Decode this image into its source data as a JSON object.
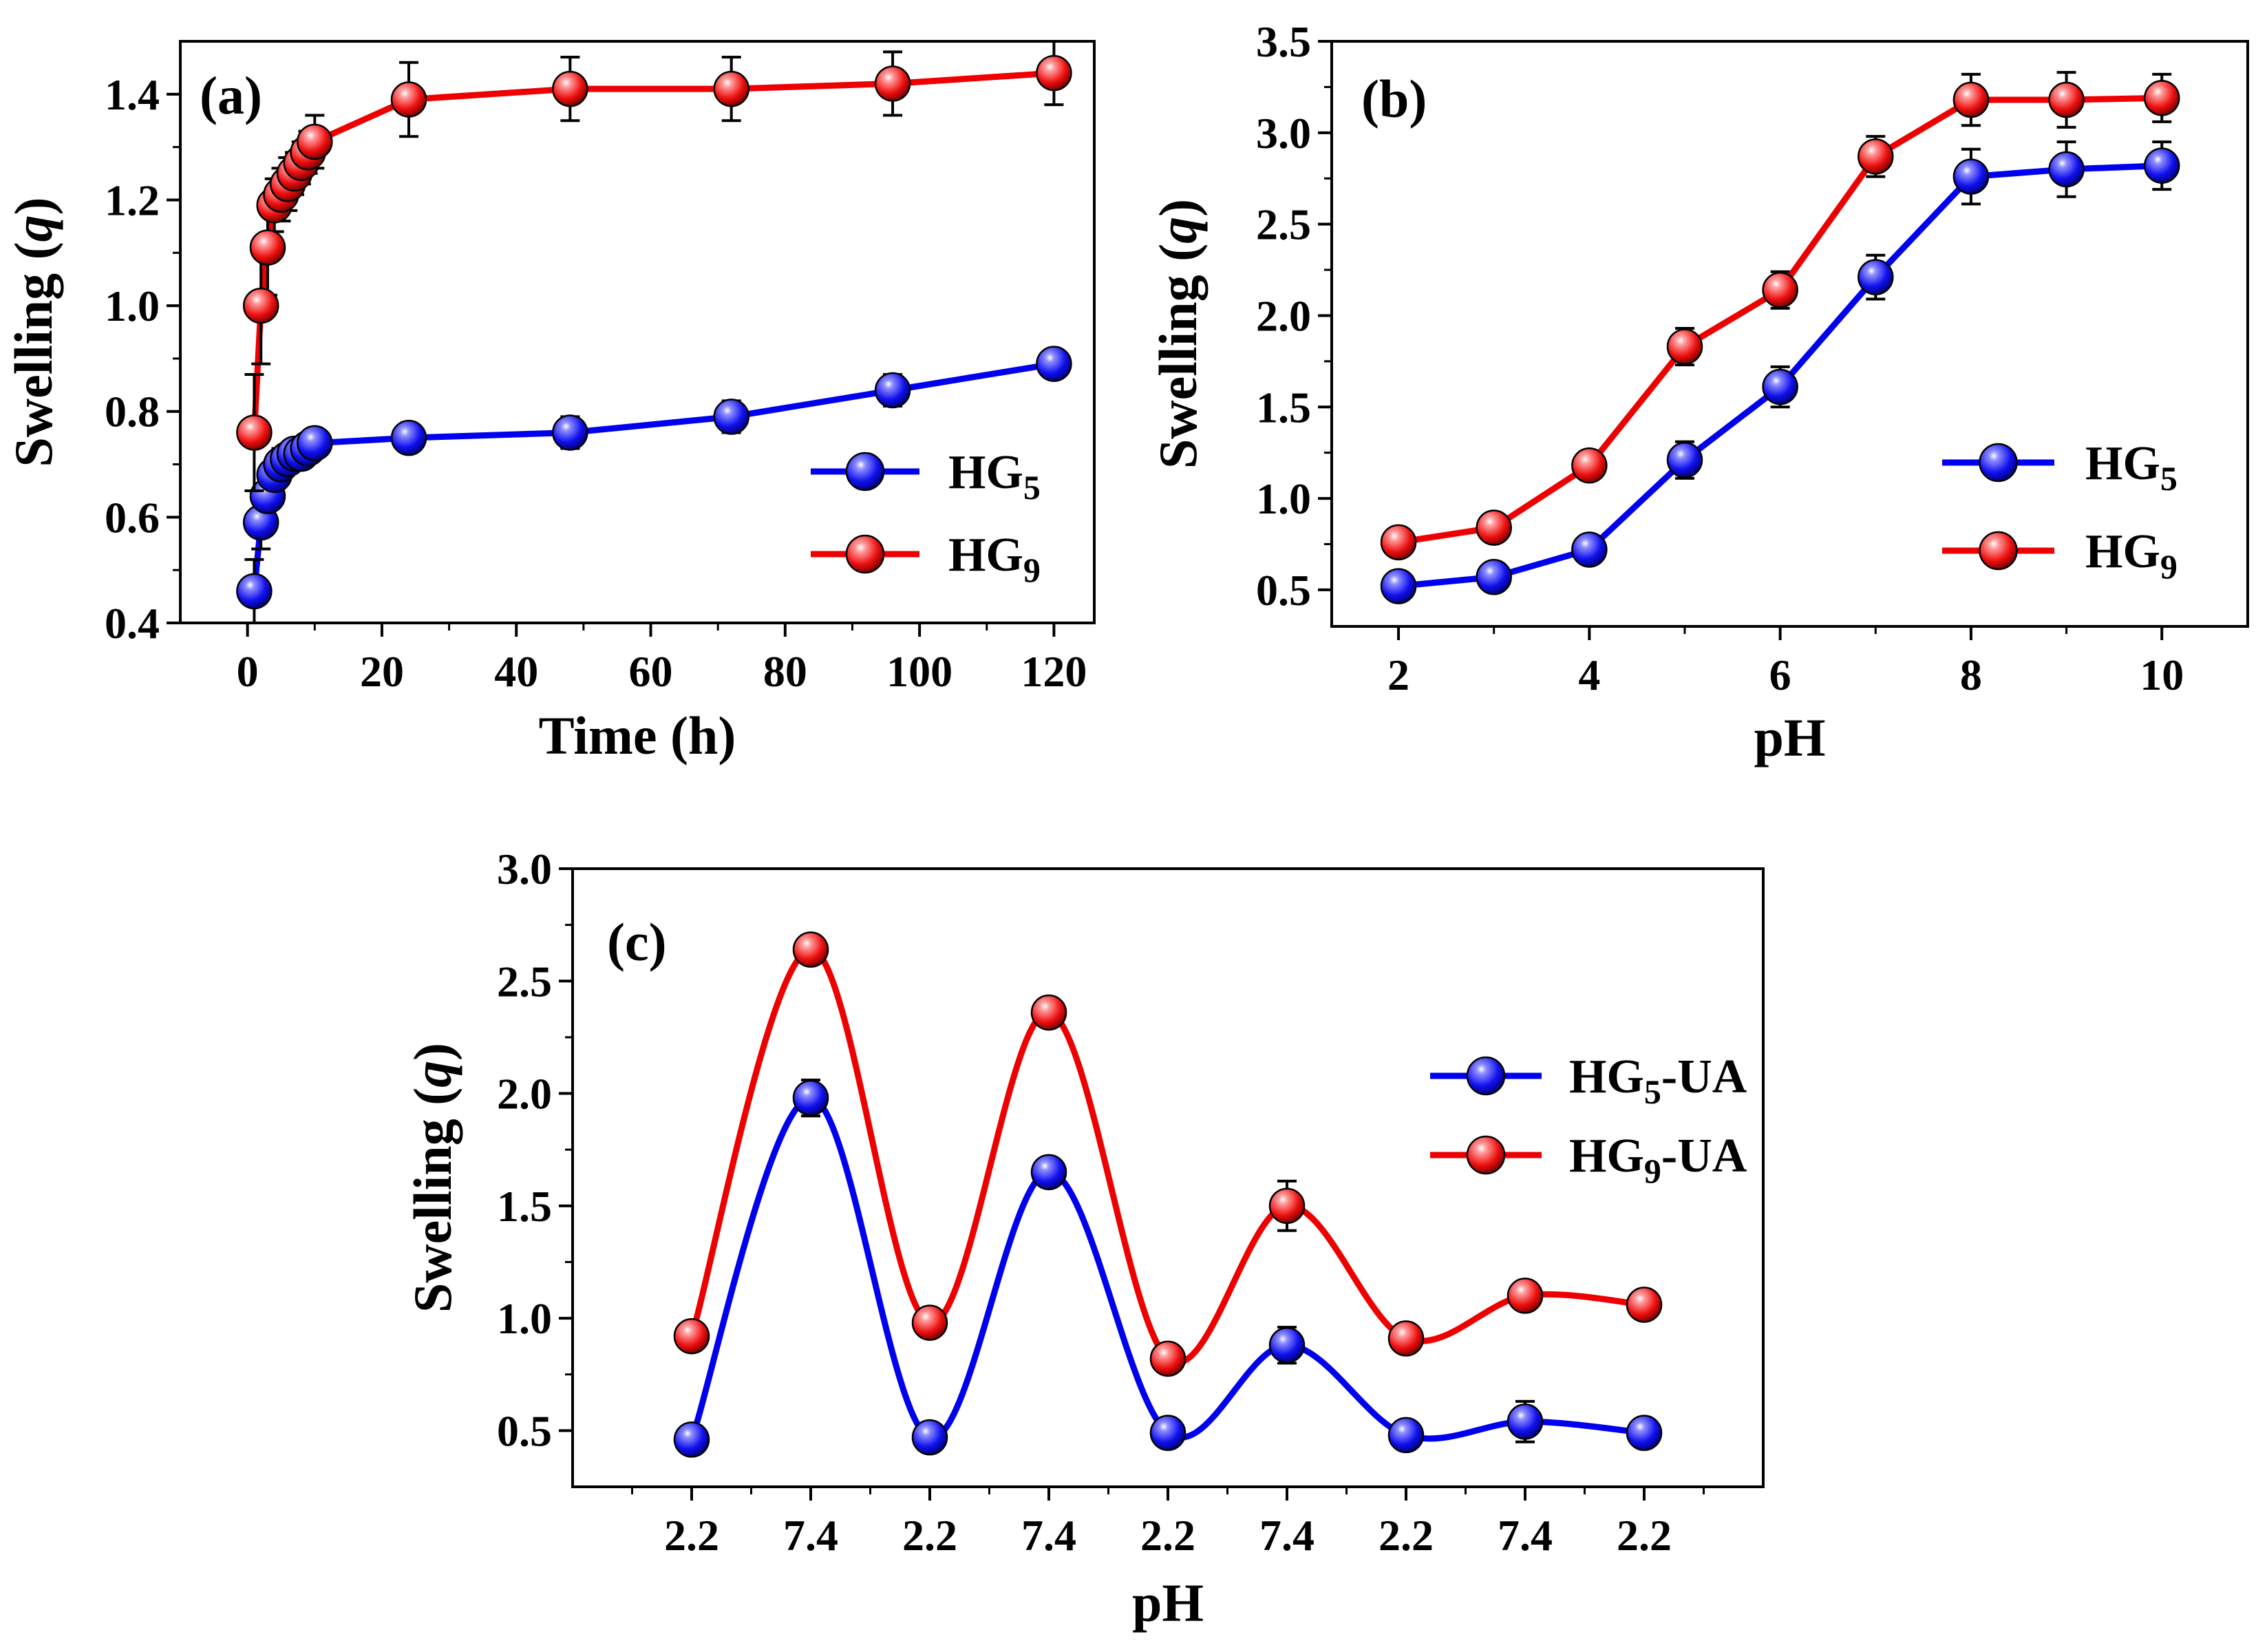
{
  "chart_data": [
    {
      "panel": "(a)",
      "type": "line",
      "xlabel": "Time (h)",
      "ylabel": "Swelling (q)",
      "xlim": [
        -10,
        126
      ],
      "ylim": [
        0.4,
        1.5
      ],
      "xticks": [
        0,
        20,
        40,
        60,
        80,
        100,
        120
      ],
      "yticks": [
        0.4,
        0.6,
        0.8,
        1.0,
        1.2,
        1.4
      ],
      "ytick_labels": [
        "0.4",
        "0.6",
        "0.8",
        "1.0",
        "1.2",
        "1.4"
      ],
      "legend_position": "right",
      "series": [
        {
          "name": "HG5",
          "name_base": "HG",
          "name_sub": "5",
          "name_suffix": "",
          "color": "#0000ee",
          "x": [
            1,
            2,
            3,
            4,
            5,
            6,
            7,
            8,
            9,
            10,
            24,
            48,
            72,
            96,
            120
          ],
          "y": [
            0.46,
            0.59,
            0.64,
            0.68,
            0.7,
            0.71,
            0.72,
            0.72,
            0.73,
            0.74,
            0.75,
            0.76,
            0.79,
            0.84,
            0.89
          ],
          "err": [
            0.06,
            0.05,
            0.04,
            0.03,
            0.03,
            0.02,
            0.02,
            0.02,
            0.02,
            0.02,
            0.02,
            0.03,
            0.03,
            0.03,
            0.02
          ]
        },
        {
          "name": "HG9",
          "name_base": "HG",
          "name_sub": "9",
          "name_suffix": "",
          "color": "#ee0000",
          "x": [
            1,
            2,
            3,
            4,
            5,
            6,
            7,
            8,
            9,
            10,
            24,
            48,
            72,
            96,
            120
          ],
          "y": [
            0.76,
            1.0,
            1.11,
            1.19,
            1.21,
            1.23,
            1.25,
            1.27,
            1.29,
            1.31,
            1.39,
            1.41,
            1.41,
            1.42,
            1.44
          ],
          "err": [
            0.11,
            0.11,
            0.09,
            0.05,
            0.05,
            0.05,
            0.04,
            0.04,
            0.04,
            0.05,
            0.07,
            0.06,
            0.06,
            0.06,
            0.06
          ]
        }
      ]
    },
    {
      "panel": "(b)",
      "type": "line",
      "xlabel": "pH",
      "ylabel": "Swelling (q)",
      "xlim": [
        1.3,
        10.9
      ],
      "ylim": [
        0.3,
        3.5
      ],
      "xticks": [
        2,
        4,
        6,
        8,
        10
      ],
      "yticks": [
        0.5,
        1.0,
        1.5,
        2.0,
        2.5,
        3.0,
        3.5
      ],
      "ytick_labels": [
        "0.5",
        "1.0",
        "1.5",
        "2.0",
        "2.5",
        "3.0",
        "3.5"
      ],
      "legend_position": "right",
      "series": [
        {
          "name": "HG5",
          "name_base": "HG",
          "name_sub": "5",
          "name_suffix": "",
          "color": "#0000ee",
          "x": [
            2,
            3,
            4,
            5,
            6,
            7,
            8,
            9,
            10
          ],
          "y": [
            0.52,
            0.57,
            0.72,
            1.21,
            1.61,
            2.21,
            2.76,
            2.8,
            2.82
          ],
          "err": [
            0.05,
            0.05,
            0.05,
            0.1,
            0.11,
            0.12,
            0.15,
            0.15,
            0.13
          ]
        },
        {
          "name": "HG9",
          "name_base": "HG",
          "name_sub": "9",
          "name_suffix": "",
          "color": "#ee0000",
          "x": [
            2,
            3,
            4,
            5,
            6,
            7,
            8,
            9,
            10
          ],
          "y": [
            0.76,
            0.84,
            1.18,
            1.83,
            2.14,
            2.87,
            3.18,
            3.18,
            3.19
          ],
          "err": [
            0.07,
            0.07,
            0.07,
            0.1,
            0.1,
            0.11,
            0.14,
            0.15,
            0.13
          ]
        }
      ]
    },
    {
      "panel": "(c)",
      "type": "line",
      "xlabel": "pH",
      "ylabel": "Swelling (q)",
      "xlim": [
        0,
        10
      ],
      "ylim": [
        0.25,
        3.0
      ],
      "categories": [
        "2.2",
        "7.4",
        "2.2",
        "7.4",
        "2.2",
        "7.4",
        "2.2",
        "7.4",
        "2.2"
      ],
      "x": [
        1,
        2,
        3,
        4,
        5,
        6,
        7,
        8,
        9
      ],
      "yticks": [
        0.5,
        1.0,
        1.5,
        2.0,
        2.5,
        3.0
      ],
      "ytick_labels": [
        "0.5",
        "1.0",
        "1.5",
        "2.0",
        "2.5",
        "3.0"
      ],
      "smooth": true,
      "legend_position": "right",
      "series": [
        {
          "name": "HG5-UA",
          "name_base": "HG",
          "name_sub": "5",
          "name_suffix": "-UA",
          "color": "#0000ee",
          "y": [
            0.46,
            1.98,
            0.47,
            1.65,
            0.49,
            0.88,
            0.48,
            0.54,
            0.49
          ],
          "err": [
            0.03,
            0.08,
            0.03,
            0.04,
            0.03,
            0.08,
            0.03,
            0.09,
            0.04
          ]
        },
        {
          "name": "HG9-UA",
          "name_base": "HG",
          "name_sub": "9",
          "name_suffix": "-UA",
          "color": "#ee0000",
          "y": [
            0.92,
            2.64,
            0.98,
            2.36,
            0.82,
            1.5,
            0.91,
            1.1,
            1.06
          ],
          "err": [
            0.03,
            0.04,
            0.04,
            0.05,
            0.04,
            0.11,
            0.04,
            0.05,
            0.04
          ]
        }
      ]
    }
  ]
}
